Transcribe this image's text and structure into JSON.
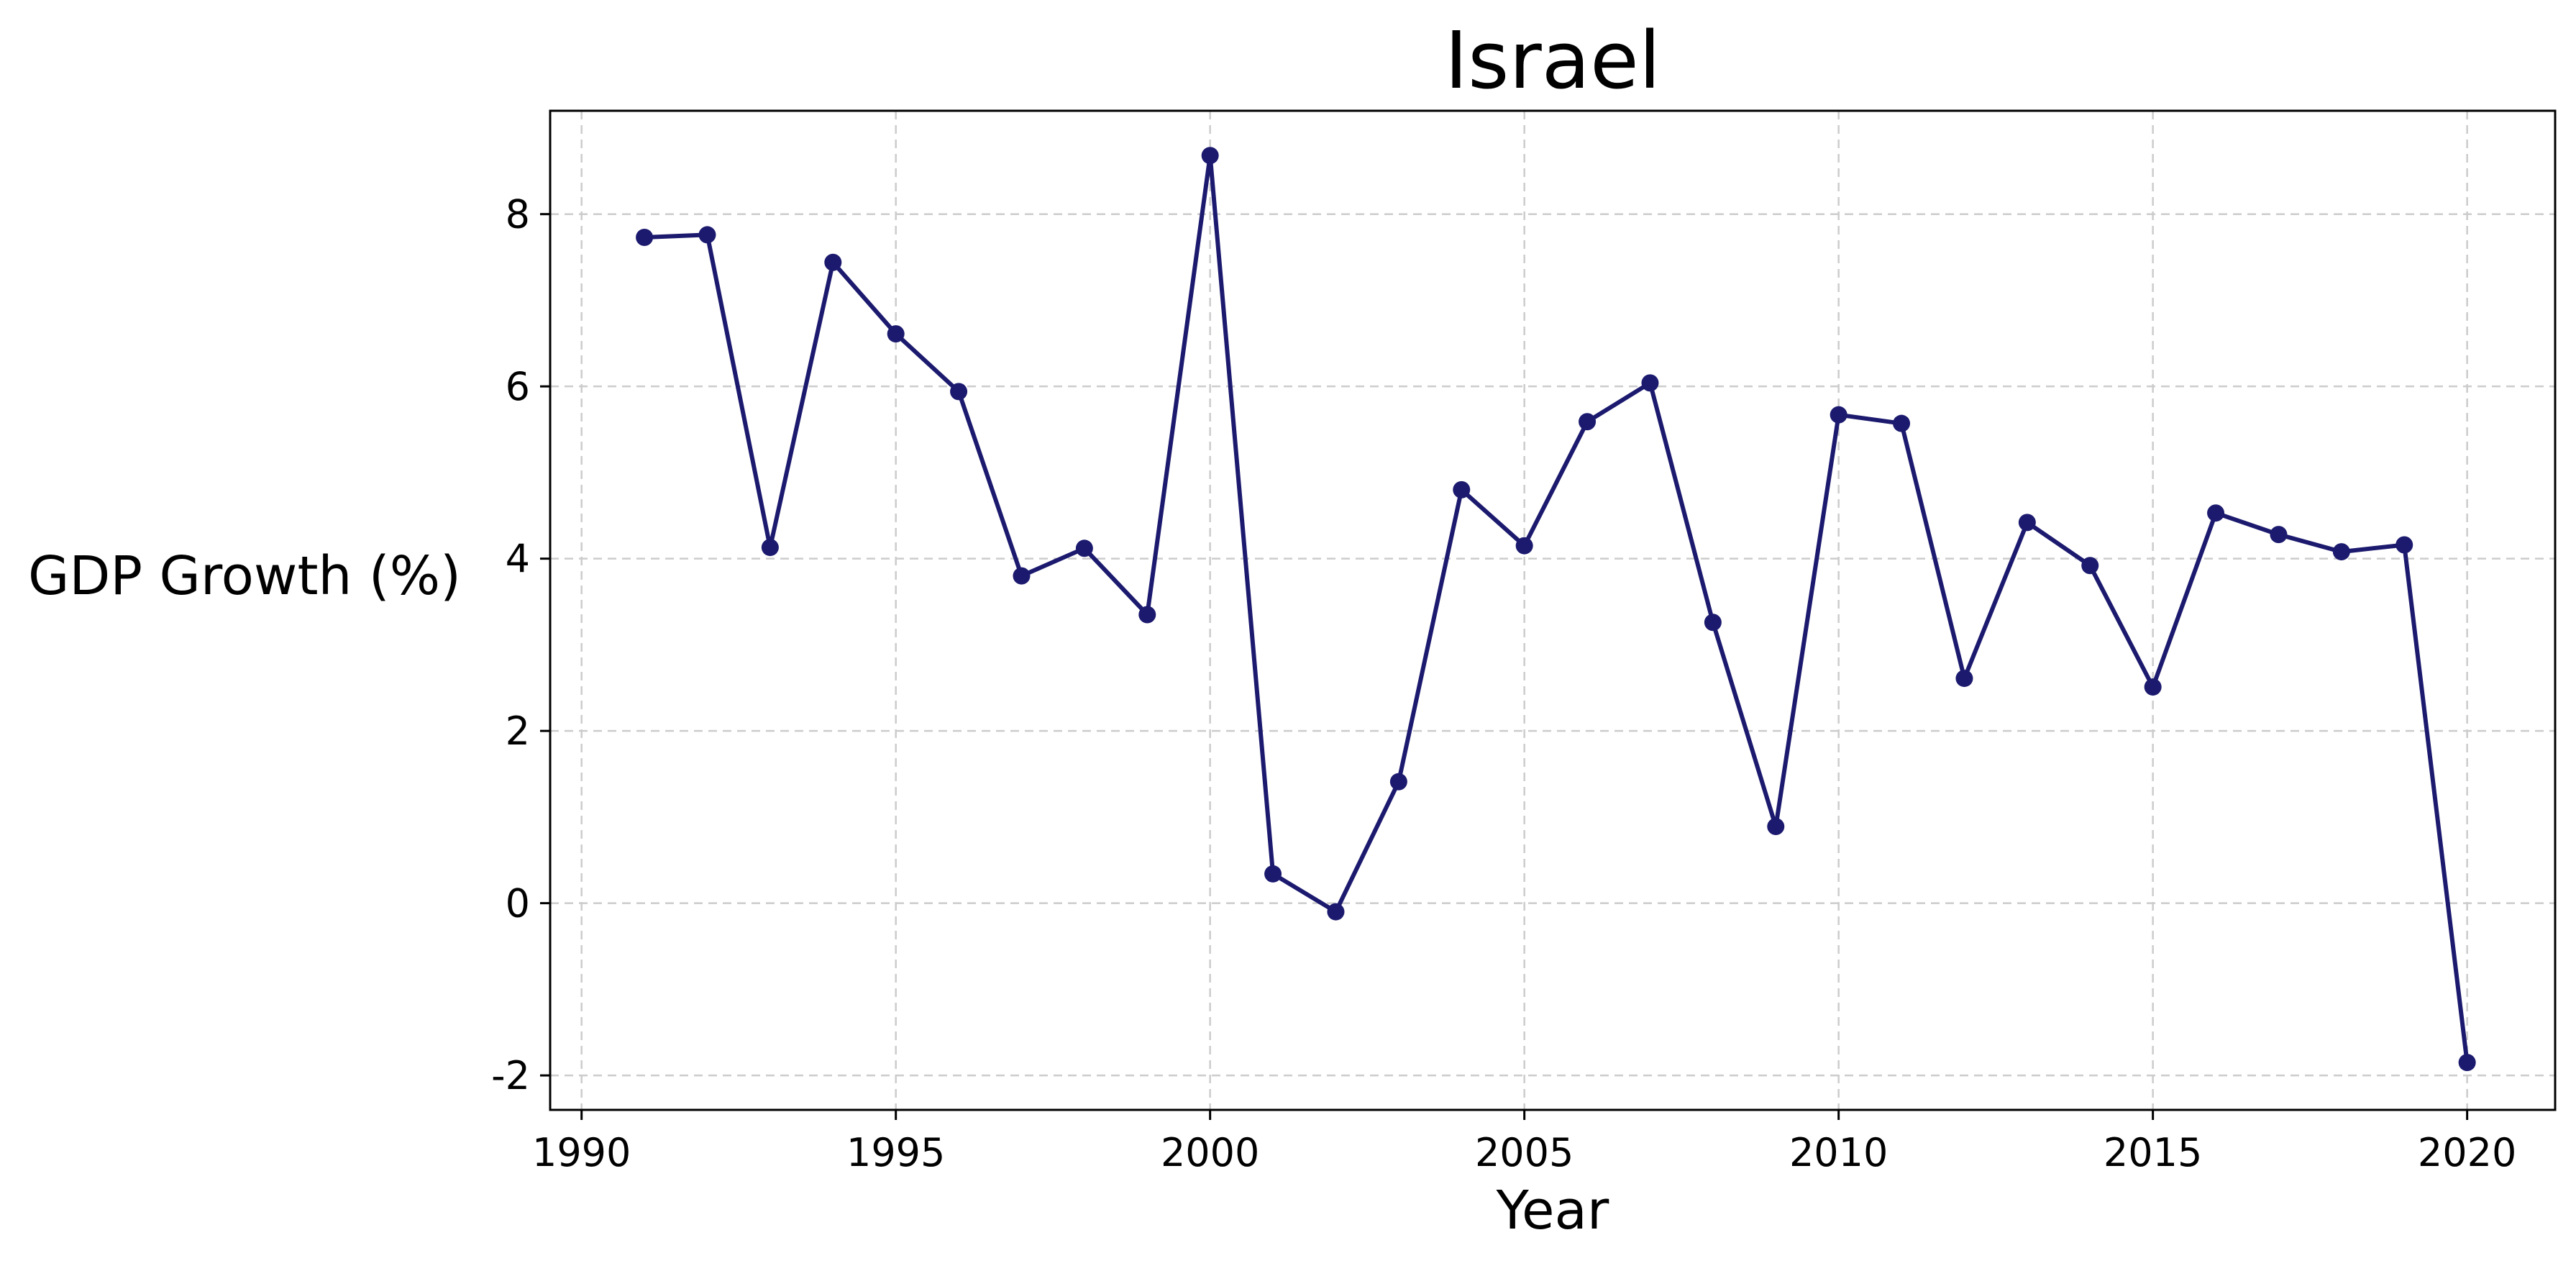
{
  "chart_data": {
    "type": "line",
    "title": "Israel",
    "xlabel": "Year",
    "ylabel": "GDP Growth (%)",
    "xlim": [
      1989.5,
      2021.4
    ],
    "ylim": [
      -2.4,
      9.2
    ],
    "xticks": [
      1990,
      1995,
      2000,
      2005,
      2010,
      2015,
      2020
    ],
    "yticks": [
      -2,
      0,
      2,
      4,
      6,
      8
    ],
    "grid": true,
    "grid_style": "dashed",
    "line_color": "#1c1a6e",
    "marker": "circle",
    "series": [
      {
        "x": [
          1991,
          1992,
          1993,
          1994,
          1995,
          1996,
          1997,
          1998,
          1999,
          2000,
          2001,
          2002,
          2003,
          2004,
          2005,
          2006,
          2007,
          2008,
          2009,
          2010,
          2011,
          2012,
          2013,
          2014,
          2015,
          2016,
          2017,
          2018,
          2019,
          2020
        ],
        "y": [
          7.73,
          7.76,
          4.13,
          7.44,
          6.61,
          5.94,
          3.8,
          4.12,
          3.35,
          8.68,
          0.34,
          -0.1,
          1.41,
          4.8,
          4.15,
          5.59,
          6.04,
          3.26,
          0.89,
          5.67,
          5.57,
          2.61,
          4.42,
          3.92,
          2.51,
          4.53,
          4.28,
          4.08,
          4.16,
          -1.85
        ]
      }
    ]
  }
}
